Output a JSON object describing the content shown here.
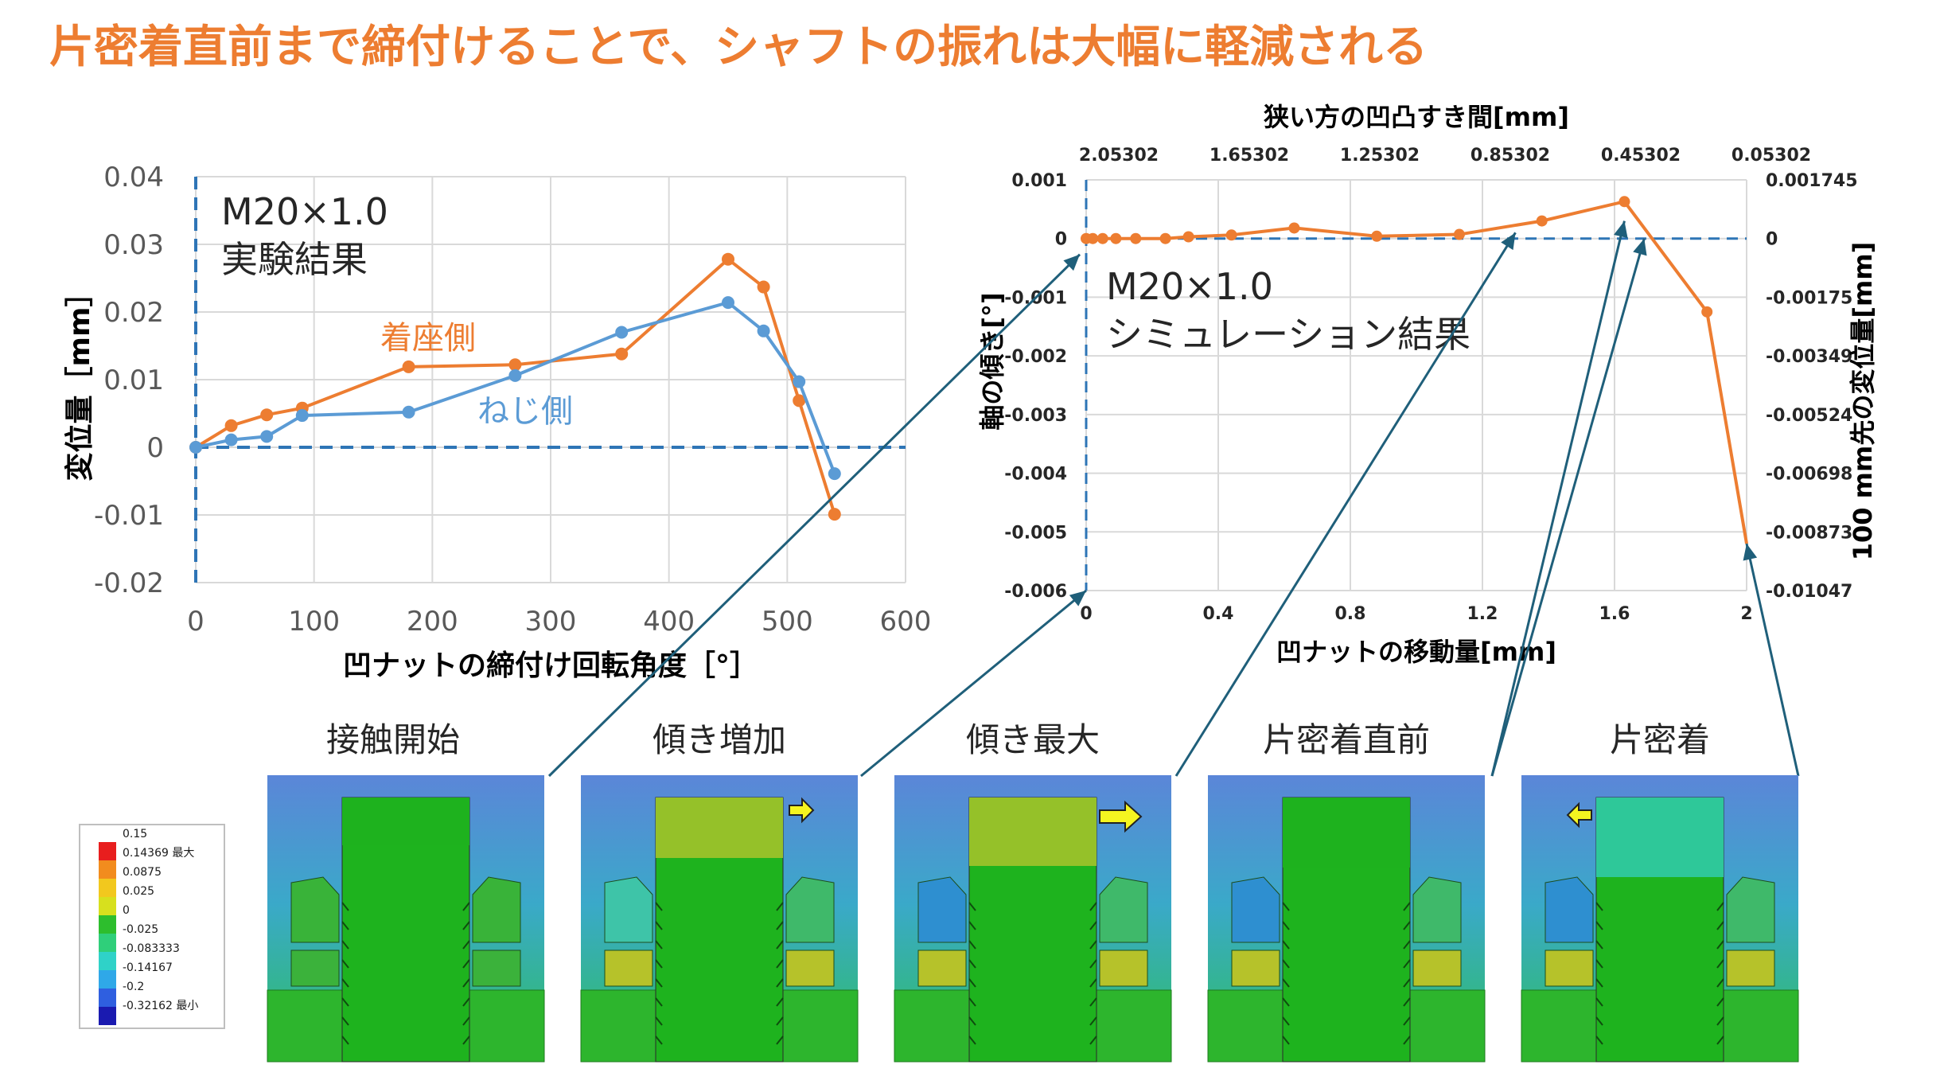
{
  "slide": {
    "title": "片密着直前まで締付けることで、シャフトの振れは大幅に軽減される",
    "accent_color": "#ED7D31",
    "secondary_color": "#5B9BD5"
  },
  "chart_data": [
    {
      "type": "line",
      "annotation": [
        "M20×1.0",
        "実験結果"
      ],
      "xlabel": "凹ナットの締付け回転角度［°］",
      "ylabel": "変位量［mm］",
      "xlim": [
        0,
        600
      ],
      "ylim": [
        -0.02,
        0.04
      ],
      "xticks": [
        0,
        100,
        200,
        300,
        400,
        500,
        600
      ],
      "yticks": [
        0.04,
        0.03,
        0.02,
        0.01,
        0,
        -0.01,
        -0.02
      ],
      "ytick_labels": [
        "0.04",
        "0.03",
        "0.02",
        "0.01",
        "0",
        "-0.01",
        "-0.02"
      ],
      "grid": true,
      "series": [
        {
          "name": "着座側",
          "color": "#ED7D31",
          "x": [
            0,
            30,
            60,
            90,
            180,
            270,
            360,
            450,
            480,
            510,
            540
          ],
          "y": [
            0,
            0.0032,
            0.0048,
            0.0058,
            0.0119,
            0.0122,
            0.0138,
            0.0278,
            0.0237,
            0.0069,
            -0.0099
          ]
        },
        {
          "name": "ねじ側",
          "color": "#5B9BD5",
          "x": [
            0,
            30,
            60,
            90,
            180,
            270,
            360,
            450,
            480,
            510,
            540
          ],
          "y": [
            0,
            0.0011,
            0.0016,
            0.0047,
            0.0052,
            0.0106,
            0.017,
            0.0214,
            0.0172,
            0.0097,
            -0.0039
          ]
        }
      ]
    },
    {
      "type": "line",
      "annotation": [
        "M20×1.0",
        "シミュレーション結果"
      ],
      "xlabel": "凹ナットの移動量[mm]",
      "ylabel": "軸の傾き[°]",
      "x2label": "狭い方の凹凸すき間[mm]",
      "y2label": "100 mm先の変位量[mm]",
      "xlim": [
        0,
        2
      ],
      "ylim": [
        -0.006,
        0.001
      ],
      "xticks": [
        0,
        0.4,
        0.8,
        1.2,
        1.6,
        2
      ],
      "yticks": [
        0.001,
        0,
        -0.001,
        -0.002,
        -0.003,
        -0.004,
        -0.005,
        -0.006
      ],
      "ytick_labels": [
        "0.001",
        "0",
        "-0.001",
        "-0.002",
        "-0.003",
        "-0.004",
        "-0.005",
        "-0.006"
      ],
      "x2ticks": [
        "2.05302",
        "1.65302",
        "1.25302",
        "0.85302",
        "0.45302",
        "0.05302"
      ],
      "y2ticks": [
        "0.001745",
        "0",
        "-0.00175",
        "-0.00349",
        "-0.00524",
        "-0.00698",
        "-0.00873",
        "-0.01047"
      ],
      "grid": true,
      "series": [
        {
          "color": "#ED7D31",
          "x": [
            0,
            0.02,
            0.05,
            0.09,
            0.15,
            0.24,
            0.31,
            0.44,
            0.63,
            0.88,
            1.13,
            1.38,
            1.63,
            1.88,
            2.0
          ],
          "y": [
            0,
            0,
            0,
            0,
            0,
            0,
            3e-05,
            6e-05,
            0.00018,
            4e-05,
            7e-05,
            0.0003,
            0.00063,
            -0.00125,
            -0.0052
          ]
        }
      ]
    }
  ],
  "colorbar": {
    "labels": [
      "0.15",
      "0.14369 最大",
      "0.0875",
      "0.025",
      "0",
      "-0.025",
      "-0.083333",
      "-0.14167",
      "-0.2",
      "-0.32162 最小"
    ],
    "colors": [
      "#E81E1E",
      "#F28C1E",
      "#F2C81E",
      "#D7E01E",
      "#2DBE2D",
      "#2FCF7A",
      "#2FD2C8",
      "#2FA8E8",
      "#2F5FE0",
      "#1A1AB0"
    ]
  },
  "stages": [
    {
      "label": "接触開始",
      "contact_level": 0.0,
      "arrow": "none"
    },
    {
      "label": "傾き増加",
      "contact_level": 0.4,
      "arrow": "right-small"
    },
    {
      "label": "傾き最大",
      "contact_level": 0.65,
      "arrow": "right-large"
    },
    {
      "label": "片密着直前",
      "contact_level": 0.7,
      "arrow": "none"
    },
    {
      "label": "片密着",
      "contact_level": 1.0,
      "arrow": "left-small"
    }
  ]
}
